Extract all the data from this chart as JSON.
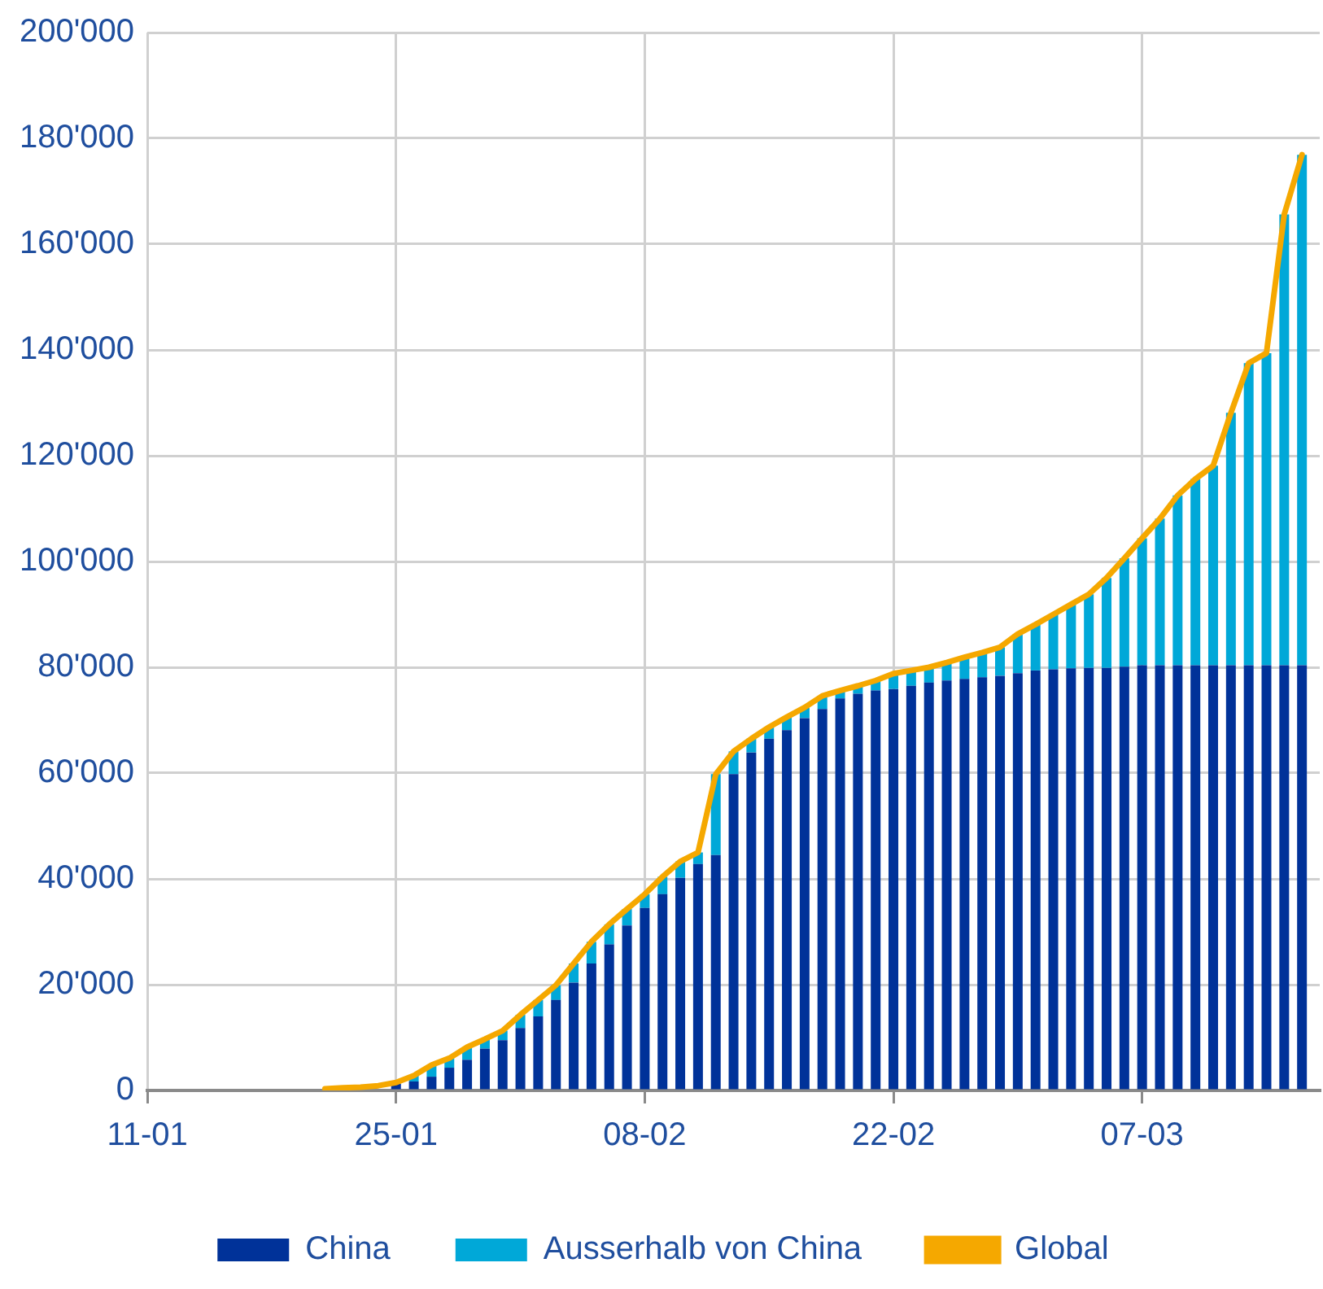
{
  "chart_data": {
    "type": "bar",
    "stacked": true,
    "grid": true,
    "legend": "bottom",
    "marker": "none",
    "x": [
      "--01-21",
      "--01-22",
      "--01-23",
      "--01-24",
      "--01-25",
      "--01-26",
      "--01-27",
      "--01-28",
      "--01-29",
      "--01-30",
      "--01-31",
      "--02-01",
      "--02-02",
      "--02-03",
      "--02-04",
      "--02-05",
      "--02-06",
      "--02-07",
      "--02-08",
      "--02-09",
      "--02-10",
      "--02-11",
      "--02-12",
      "--02-13",
      "--02-14",
      "--02-15",
      "--02-16",
      "--02-17",
      "--02-18",
      "--02-19",
      "--02-20",
      "--02-21",
      "--02-22",
      "--02-23",
      "--02-24",
      "--02-25",
      "--02-26",
      "--02-27",
      "--02-28",
      "--02-29",
      "--03-01",
      "--03-02",
      "--03-03",
      "--03-04",
      "--03-05",
      "--03-06",
      "--03-07",
      "--03-08",
      "--03-09",
      "--03-10",
      "--03-11",
      "--03-12",
      "--03-13",
      "--03-14",
      "--03-15",
      "--03-16"
    ],
    "series": [
      {
        "name": "China",
        "color": "#003299",
        "values": [
          null,
          null,
          null,
          null,
          1300,
          1700,
          2600,
          4300,
          5800,
          7900,
          9500,
          11800,
          14000,
          17100,
          20400,
          24000,
          27600,
          31200,
          34500,
          37100,
          40200,
          42800,
          44500,
          59800,
          63900,
          66500,
          68100,
          70400,
          72100,
          74100,
          75000,
          75600,
          75900,
          76500,
          77100,
          77500,
          77800,
          78100,
          78400,
          78900,
          79400,
          79600,
          79800,
          79900,
          79900,
          80100,
          80400,
          80400,
          80400,
          80400,
          80400,
          80400,
          80400,
          80400,
          80400,
          80400
        ]
      },
      {
        "name": "Ausserhalb von China",
        "color": "#00a8d8",
        "values": [
          null,
          null,
          null,
          null,
          null,
          1100,
          2200,
          1800,
          2400,
          1800,
          1800,
          2500,
          3100,
          2800,
          3600,
          4100,
          3800,
          3100,
          2600,
          3300,
          3100,
          2200,
          15300,
          4300,
          2600,
          2200,
          2500,
          2000,
          2500,
          1500,
          1500,
          1900,
          2900,
          2900,
          2900,
          3400,
          4100,
          4700,
          5400,
          7400,
          8700,
          10400,
          12100,
          13900,
          17000,
          20500,
          24000,
          27700,
          32100,
          35200,
          37700,
          47700,
          57100,
          59000,
          85200,
          96500
        ]
      },
      {
        "name": "Global",
        "type": "line",
        "color": "#f5a800",
        "values": [
          300,
          500,
          600,
          900,
          1500,
          2800,
          4800,
          6100,
          8200,
          9700,
          11300,
          14300,
          17100,
          19900,
          24000,
          28100,
          31400,
          34300,
          37100,
          40400,
          43300,
          45000,
          59800,
          64100,
          66500,
          68700,
          70600,
          72400,
          74600,
          75600,
          76500,
          77500,
          78800,
          79400,
          80000,
          80900,
          81900,
          82800,
          83800,
          86300,
          88100,
          90000,
          91900,
          93800,
          96900,
          100600,
          104400,
          108100,
          112500,
          115600,
          118100,
          128100,
          137500,
          139400,
          165600,
          176900
        ]
      }
    ],
    "xlim": [
      "--01-11",
      "--03-17"
    ],
    "xticks": [
      {
        "value": "--01-11",
        "label": "11-01"
      },
      {
        "value": "--01-25",
        "label": "25-01"
      },
      {
        "value": "--02-08",
        "label": "08-02"
      },
      {
        "value": "--02-22",
        "label": "22-02"
      },
      {
        "value": "--03-07",
        "label": "07-03"
      }
    ],
    "ylim": [
      0,
      200000
    ],
    "yticks": [
      0,
      {
        "value": 20000,
        "label": "20'000"
      },
      {
        "value": 40000,
        "label": "40'000"
      },
      {
        "value": 60000,
        "label": "60'000"
      },
      {
        "value": 80000,
        "label": "80'000"
      },
      {
        "value": 100000,
        "label": "100'000"
      },
      {
        "value": 120000,
        "label": "120'000"
      },
      {
        "value": 140000,
        "label": "140'000"
      },
      {
        "value": 160000,
        "label": "160'000"
      },
      {
        "value": 180000,
        "label": "180'000"
      },
      {
        "value": 200000,
        "label": "200'000"
      }
    ]
  }
}
